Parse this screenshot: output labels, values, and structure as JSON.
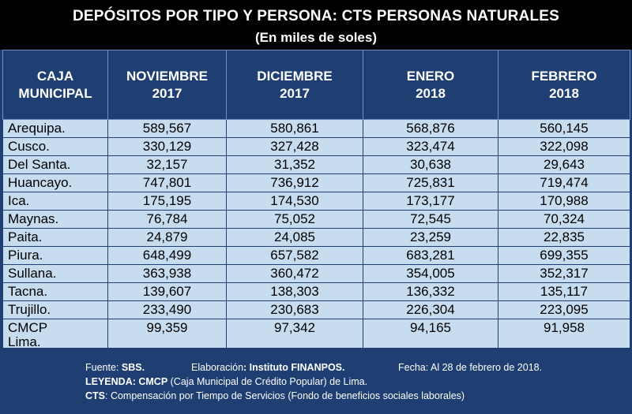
{
  "title": "DEPÓSITOS POR TIPO Y PERSONA: CTS PERSONAS NATURALES",
  "subtitle": "(En miles de soles)",
  "columns": [
    {
      "l1": "CAJA",
      "l2": "MUNICIPAL"
    },
    {
      "l1": "NOVIEMBRE",
      "l2": "2017"
    },
    {
      "l1": "DICIEMBRE",
      "l2": "2017"
    },
    {
      "l1": "ENERO",
      "l2": "2018"
    },
    {
      "l1": "FEBRERO",
      "l2": "2018"
    }
  ],
  "rows": [
    {
      "name": "Arequipa.",
      "v": [
        "589,567",
        "580,861",
        "568,876",
        "560,145"
      ]
    },
    {
      "name": "Cusco.",
      "v": [
        "330,129",
        "327,428",
        "323,474",
        "322,098"
      ]
    },
    {
      "name": "Del Santa.",
      "v": [
        "32,157",
        "31,352",
        "30,638",
        "29,643"
      ]
    },
    {
      "name": "Huancayo.",
      "v": [
        "747,801",
        "736,912",
        "725,831",
        "719,474"
      ]
    },
    {
      "name": "Ica.",
      "v": [
        "175,195",
        "174,530",
        "173,177",
        "170,988"
      ]
    },
    {
      "name": "Maynas.",
      "v": [
        "76,784",
        "75,052",
        "72,545",
        "70,324"
      ]
    },
    {
      "name": "Paita.",
      "v": [
        "24,879",
        "24,085",
        "23,259",
        "22,835"
      ]
    },
    {
      "name": "Piura.",
      "v": [
        "648,499",
        "657,582",
        "683,281",
        "699,355"
      ]
    },
    {
      "name": "Sullana.",
      "v": [
        "363,938",
        "360,472",
        "354,005",
        "352,317"
      ]
    },
    {
      "name": "Tacna.",
      "v": [
        "139,607",
        "138,303",
        "136,332",
        "135,117"
      ]
    },
    {
      "name": "Trujillo.",
      "v": [
        "233,490",
        "230,683",
        "226,304",
        "223,095"
      ]
    },
    {
      "name": "CMCP",
      "name2": "Lima.",
      "v": [
        "99,359",
        "97,342",
        "94,165",
        "91,958"
      ]
    }
  ],
  "footer": {
    "fuente_label": "Fuente: ",
    "fuente_value": "SBS.",
    "elab_label": "Elaboración",
    "elab_value": ": Instituto FINANPOS.",
    "fecha": "Fecha: Al 28 de febrero de 2018.",
    "leyenda_label": "LEYENDA: CMCP",
    "leyenda_text": " (Caja Municipal de Crédito Popular) de Lima.",
    "cts_label": "CTS",
    "cts_text": ": Compensación por Tiempo de Servicios (Fondo de beneficios sociales laborales)"
  },
  "colors": {
    "header_bg": "#1f3f73",
    "cell_bg": "#c8dcf0",
    "title_bg": "#000000"
  }
}
